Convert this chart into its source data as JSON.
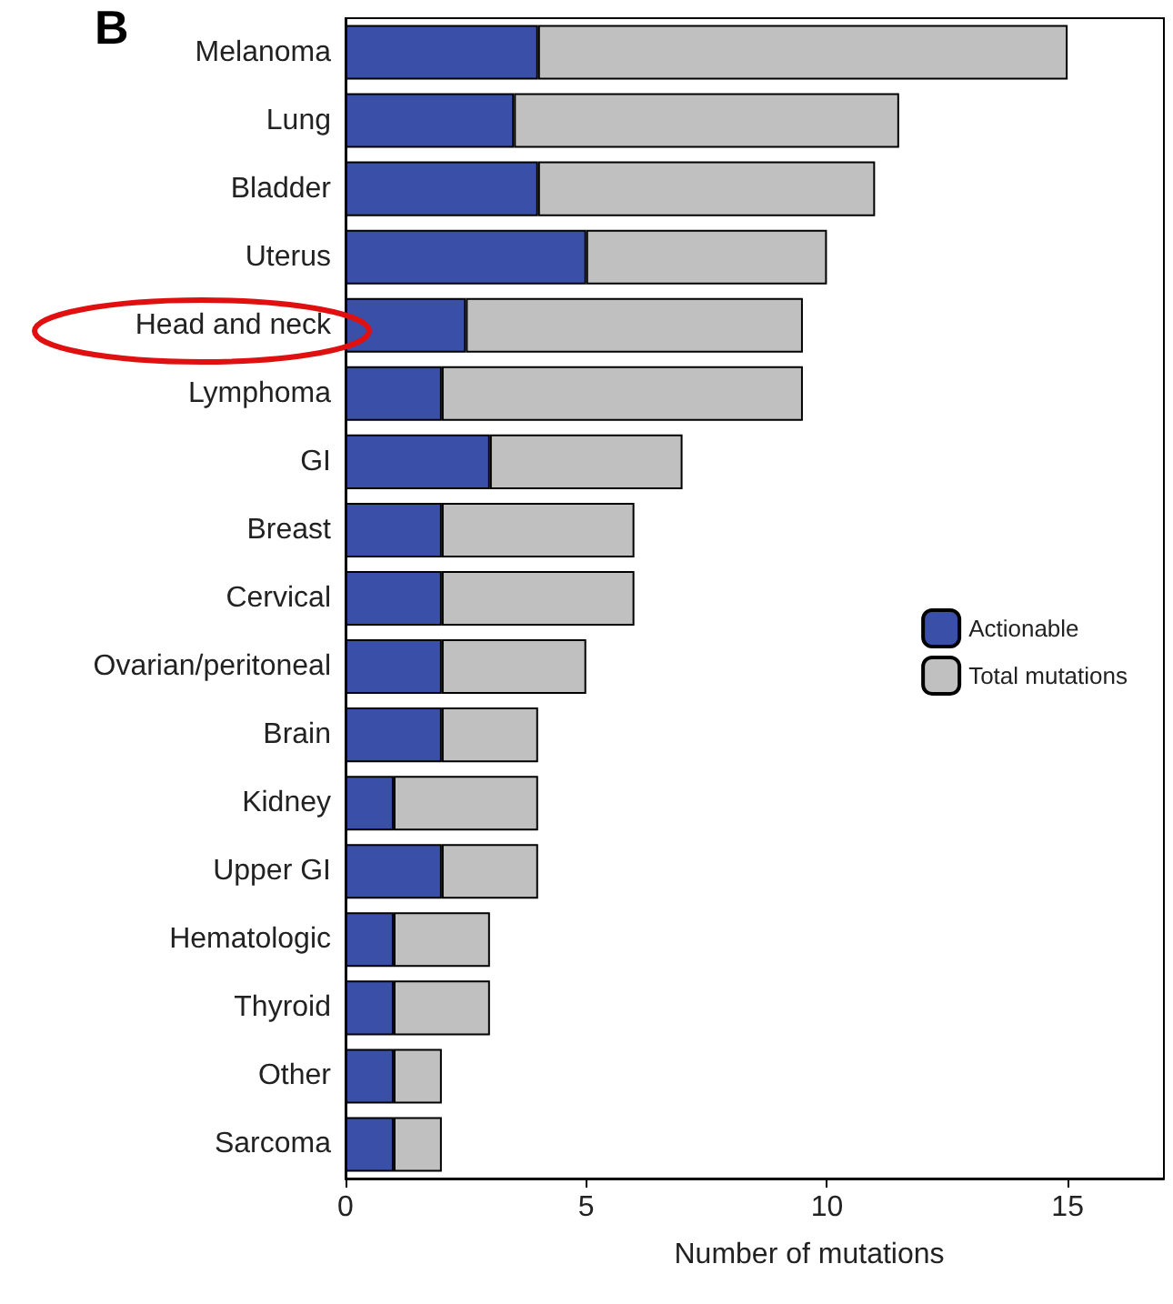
{
  "chart_data": {
    "type": "bar",
    "orientation": "horizontal",
    "stacked": true,
    "annotations": [
      "B"
    ],
    "xlabel": "Number of mutations",
    "categories": [
      "Melanoma",
      "Lung",
      "Bladder",
      "Uterus",
      "Head and neck",
      "Lymphoma",
      "GI",
      "Breast",
      "Cervical",
      "Ovarian/peritoneal",
      "Brain",
      "Kidney",
      "Upper GI",
      "Hematologic",
      "Thyroid",
      "Other",
      "Sarcoma"
    ],
    "series": [
      {
        "name": "Actionable",
        "color": "#3a4fa8",
        "values": [
          4,
          3.5,
          4,
          5,
          2.5,
          2,
          3,
          2,
          2,
          2,
          2,
          1,
          2,
          1,
          1,
          1,
          1
        ]
      },
      {
        "name": "Total mutations",
        "color": "#c0c0c0",
        "values": [
          11,
          8,
          7,
          5,
          7,
          7.5,
          4,
          4,
          4,
          3,
          2,
          3,
          2,
          2,
          2,
          1,
          1
        ]
      }
    ],
    "xlim": [
      0,
      17
    ],
    "xticks": [
      0,
      5,
      10,
      15
    ],
    "grid": false,
    "legend": "right"
  }
}
